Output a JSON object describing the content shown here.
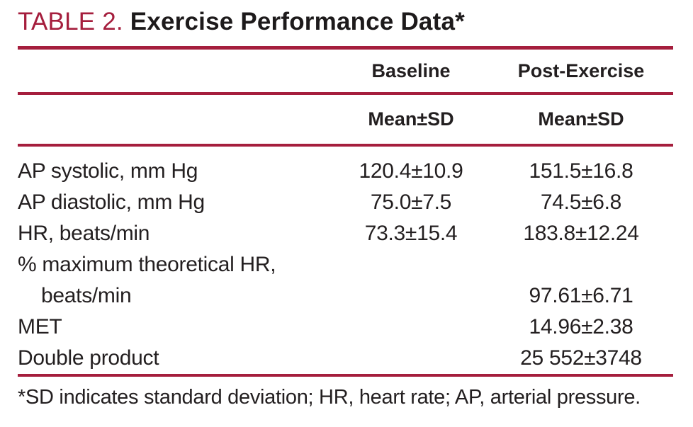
{
  "colors": {
    "accent_rule": "#A51E3D",
    "title_prefix": "#A51E3D",
    "body_text": "#231F20"
  },
  "title": {
    "prefix": "TABLE 2.",
    "text": "Exercise Performance Data*"
  },
  "table": {
    "column_headers": {
      "baseline": "Baseline",
      "post_exercise": "Post-Exercise"
    },
    "subheaders": {
      "baseline": "Mean±SD",
      "post_exercise": "Mean±SD"
    },
    "rows": [
      {
        "label": "AP systolic, mm Hg",
        "baseline": "120.4±10.9",
        "post_exercise": "151.5±16.8"
      },
      {
        "label": "AP diastolic, mm Hg",
        "baseline": "75.0±7.5",
        "post_exercise": "74.5±6.8"
      },
      {
        "label": "HR, beats/min",
        "baseline": "73.3±15.4",
        "post_exercise": "183.8±12.24"
      },
      {
        "label": "% maximum theoretical HR,",
        "label_line2": "beats/min",
        "baseline": "",
        "post_exercise": "97.61±6.71"
      },
      {
        "label": "MET",
        "baseline": "",
        "post_exercise": "14.96±2.38"
      },
      {
        "label": "Double product",
        "baseline": "",
        "post_exercise": "25 552±3748"
      }
    ],
    "footnote": "*SD indicates standard deviation; HR, heart rate; AP, arterial pressure."
  }
}
